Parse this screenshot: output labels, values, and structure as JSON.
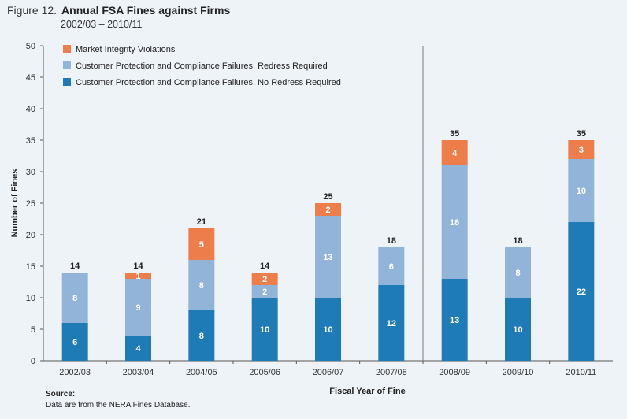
{
  "figure": {
    "number": "Figure 12.",
    "title": "Annual FSA Fines against Firms",
    "subtitle": "2002/03 – 2010/11"
  },
  "source": {
    "label": "Source:",
    "text": "Data are from the NERA Fines Database."
  },
  "colors": {
    "no_redress": "#1f7bb6",
    "redress": "#91b4d8",
    "market": "#ed7d4a",
    "background": "#eef3f8"
  },
  "chart_data": {
    "type": "bar",
    "stacked": true,
    "xlabel": "Fiscal Year of Fine",
    "ylabel": "Number of Fines",
    "ylim": [
      0,
      50
    ],
    "yticks": [
      0,
      5,
      10,
      15,
      20,
      25,
      30,
      35,
      40,
      45,
      50
    ],
    "grid": false,
    "legend_position": "top-left",
    "categories": [
      "2002/03",
      "2003/04",
      "2004/05",
      "2005/06",
      "2006/07",
      "2007/08",
      "2008/09",
      "2009/10",
      "2010/11"
    ],
    "series": [
      {
        "name": "Customer Protection and Compliance Failures, No Redress Required",
        "values": [
          6,
          4,
          8,
          10,
          10,
          12,
          13,
          10,
          22
        ]
      },
      {
        "name": "Customer Protection and Compliance Failures, Redress Required",
        "values": [
          8,
          9,
          8,
          2,
          13,
          6,
          18,
          8,
          10
        ]
      },
      {
        "name": "Market Integrity Violations",
        "values": [
          0,
          1,
          5,
          2,
          2,
          0,
          4,
          0,
          3
        ]
      }
    ],
    "totals": [
      14,
      14,
      21,
      14,
      25,
      18,
      35,
      18,
      35
    ],
    "divider_after_category": "2007/08"
  }
}
